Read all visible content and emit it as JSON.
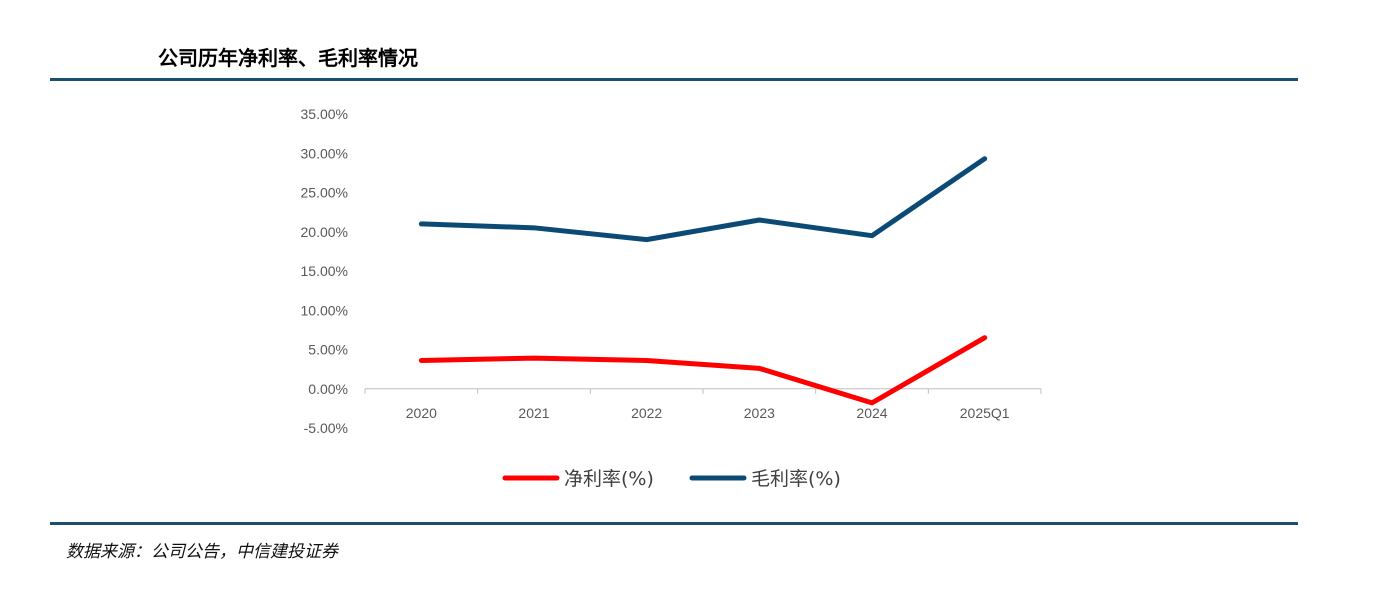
{
  "header": {
    "title": "公司历年净利率、毛利率情况"
  },
  "footer": {
    "source": "数据来源：公司公告，中信建投证券"
  },
  "chart_data": {
    "type": "line",
    "categories": [
      "2020",
      "2021",
      "2022",
      "2023",
      "2024",
      "2025Q1"
    ],
    "series": [
      {
        "name": "净利率(%)",
        "color": "#ff0000",
        "values": [
          3.6,
          3.9,
          3.6,
          2.6,
          -1.8,
          6.5
        ]
      },
      {
        "name": "毛利率(%)",
        "color": "#0c4a76",
        "values": [
          21.0,
          20.5,
          19.0,
          21.5,
          19.5,
          29.3
        ]
      }
    ],
    "y_ticks": [
      "35.00%",
      "30.00%",
      "25.00%",
      "20.00%",
      "15.00%",
      "10.00%",
      "5.00%",
      "0.00%",
      "-5.00%"
    ],
    "ylim": [
      -5,
      35
    ],
    "xlabel": "",
    "ylabel": "",
    "grid": false,
    "legend": "bottom-center"
  }
}
